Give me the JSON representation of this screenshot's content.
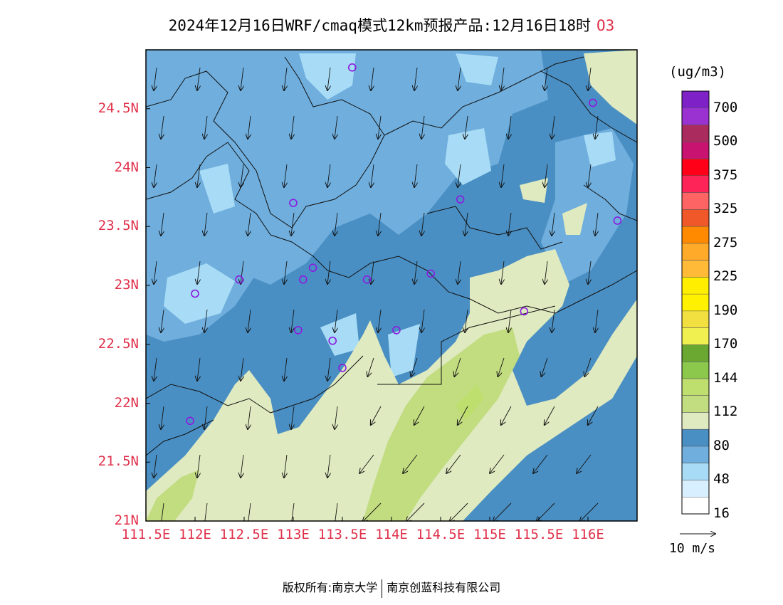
{
  "title": "2024年12月16日WRF/cmaq模式12km预报产品:12月16日18时",
  "pollutant": "O3",
  "colorbar": {
    "unit": "(ug/m3)",
    "labels": [
      "700",
      "500",
      "375",
      "325",
      "275",
      "225",
      "190",
      "170",
      "144",
      "112",
      "80",
      "48",
      "16"
    ],
    "colors": [
      "#7e22c8",
      "#9a32d2",
      "#aa2c5e",
      "#c81470",
      "#ff0018",
      "#ff2458",
      "#ff6464",
      "#f0582a",
      "#ff8a00",
      "#ffaa28",
      "#ffba38",
      "#ffee00",
      "#fff100",
      "#f2e040",
      "#f0f050",
      "#6aa832",
      "#8cc84c",
      "#bede6e",
      "#c2dc80",
      "#dfeac0",
      "#4a8fc3",
      "#6faedd",
      "#a8dcf6",
      "#d8efff",
      "#ffffff"
    ]
  },
  "axes": {
    "x_ticks": [
      "111.5E",
      "112E",
      "112.5E",
      "113E",
      "113.5E",
      "114E",
      "114.5E",
      "115E",
      "115.5E",
      "116E"
    ],
    "y_ticks": [
      "24.5N",
      "24N",
      "23.5N",
      "23N",
      "22.5N",
      "22N",
      "21.5N",
      "21N"
    ],
    "xlim": [
      111.5,
      116.5
    ],
    "ylim": [
      21.0,
      25.0
    ]
  },
  "wind_vector_reference": "10 m/s",
  "stations": [
    {
      "lon": 113.6,
      "lat": 24.85
    },
    {
      "lon": 116.05,
      "lat": 24.55
    },
    {
      "lon": 114.7,
      "lat": 23.73
    },
    {
      "lon": 113.0,
      "lat": 23.7
    },
    {
      "lon": 116.3,
      "lat": 23.55
    },
    {
      "lon": 113.2,
      "lat": 23.15
    },
    {
      "lon": 112.45,
      "lat": 23.05
    },
    {
      "lon": 113.1,
      "lat": 23.05
    },
    {
      "lon": 113.75,
      "lat": 23.05
    },
    {
      "lon": 114.4,
      "lat": 23.1
    },
    {
      "lon": 112.0,
      "lat": 22.93
    },
    {
      "lon": 115.35,
      "lat": 22.78
    },
    {
      "lon": 113.05,
      "lat": 22.62
    },
    {
      "lon": 113.4,
      "lat": 22.53
    },
    {
      "lon": 114.05,
      "lat": 22.62
    },
    {
      "lon": 113.5,
      "lat": 22.3
    },
    {
      "lon": 111.95,
      "lat": 21.85
    }
  ],
  "copyright": {
    "label": "版权所有:",
    "org1": "南京大学",
    "org2": "南京创蓝科技有限公司"
  }
}
